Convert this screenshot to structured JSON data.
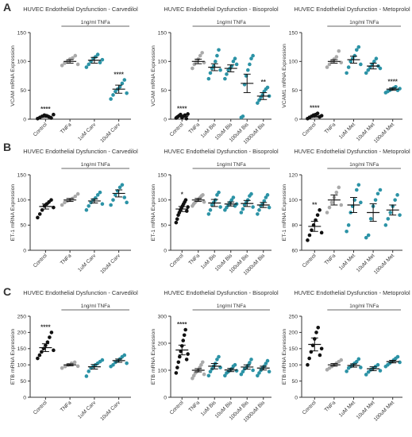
{
  "figure": {
    "row_labels": [
      "A",
      "B",
      "C"
    ],
    "colors": {
      "control": "#111111",
      "tnfa": "#aaaaaa",
      "treatment": "#2c93a6",
      "axis": "#333333"
    }
  },
  "chart_data": [
    {
      "type": "scatter",
      "title": "HUVEC Endothelial Dysfunction - Carvedilol",
      "ylabel": "VCAM mRNA Expression",
      "ylim": [
        0,
        150
      ],
      "yticks": [
        0,
        50,
        100,
        150
      ],
      "bracket_label": "1ng/ml TNFa",
      "categories": [
        "Control",
        "TNFa",
        "1uM Carv",
        "10uM Carv"
      ],
      "significance": [
        "****",
        "",
        "",
        "****"
      ],
      "means": [
        5,
        100,
        102,
        52
      ],
      "sem": [
        2,
        3,
        5,
        7
      ],
      "points": [
        [
          1,
          3,
          5,
          7,
          6,
          4,
          2,
          8
        ],
        [
          93,
          97,
          100,
          104,
          106,
          110,
          95
        ],
        [
          90,
          95,
          100,
          105,
          108,
          112,
          98,
          103
        ],
        [
          35,
          42,
          48,
          52,
          56,
          62,
          68,
          45
        ]
      ]
    },
    {
      "type": "scatter",
      "title": "HUVEC Endothelial Dysfunction - Bisoprolol",
      "ylabel": "VCAM mRNA Expression",
      "ylim": [
        0,
        150
      ],
      "yticks": [
        0,
        50,
        100,
        150
      ],
      "bracket_label": "1ng/ml TNFa",
      "categories": [
        "Control",
        "TNFa",
        "1uM Bis",
        "10uM Bis",
        "100uM Bis",
        "1000uM Bis"
      ],
      "significance": [
        "****",
        "",
        "",
        "",
        "",
        "**"
      ],
      "means": [
        5,
        100,
        90,
        88,
        62,
        40
      ],
      "sem": [
        1,
        4,
        6,
        6,
        16,
        6
      ],
      "points": [
        [
          2,
          4,
          6,
          8,
          3,
          5,
          7,
          1,
          9
        ],
        [
          88,
          95,
          100,
          104,
          110,
          115,
          98
        ],
        [
          70,
          80,
          88,
          92,
          100,
          110,
          120,
          85
        ],
        [
          70,
          78,
          85,
          88,
          92,
          100,
          105,
          95
        ],
        [
          3,
          5,
          60,
          75,
          85,
          95,
          105,
          110
        ],
        [
          28,
          33,
          38,
          42,
          48,
          52,
          55,
          40
        ]
      ]
    },
    {
      "type": "scatter",
      "title": "HUVEC Endothelial Dysfunction - Metoprolol",
      "ylabel": "VCAM1 mRNA Expression",
      "ylim": [
        0,
        150
      ],
      "yticks": [
        0,
        50,
        100,
        150
      ],
      "bracket_label": "1ng/ml TNFa",
      "categories": [
        "Control",
        "TNFa",
        "1uM Met",
        "10uM Met",
        "100uM Met"
      ],
      "significance": [
        "****",
        "",
        "",
        "",
        "****"
      ],
      "means": [
        5,
        100,
        103,
        92,
        52
      ],
      "sem": [
        2,
        3,
        6,
        5,
        2
      ],
      "points": [
        [
          1,
          3,
          5,
          7,
          8,
          10,
          4,
          6
        ],
        [
          90,
          95,
          100,
          104,
          108,
          118,
          98
        ],
        [
          80,
          90,
          100,
          105,
          110,
          120,
          125,
          95
        ],
        [
          80,
          85,
          90,
          95,
          100,
          105,
          92,
          88
        ],
        [
          46,
          48,
          50,
          52,
          54,
          56,
          50,
          53
        ]
      ]
    },
    {
      "type": "scatter",
      "title": "HUVEC Endothelial Dysfunction - Carvedilol",
      "ylabel": "ET-1 mRNA Expression",
      "ylim": [
        0,
        150
      ],
      "yticks": [
        0,
        50,
        100,
        150
      ],
      "bracket_label": "1ng/ml TNFa",
      "categories": [
        "Control",
        "TNFa",
        "1uM Carv",
        "10uM Carv"
      ],
      "significance": [
        "",
        "",
        "",
        ""
      ],
      "means": [
        87,
        100,
        98,
        113
      ],
      "sem": [
        5,
        3,
        4,
        7
      ],
      "points": [
        [
          65,
          72,
          80,
          88,
          92,
          96,
          100,
          85
        ],
        [
          90,
          95,
          98,
          100,
          103,
          107,
          112
        ],
        [
          80,
          88,
          95,
          100,
          104,
          110,
          115,
          92
        ],
        [
          90,
          100,
          110,
          118,
          125,
          130,
          105,
          95
        ]
      ]
    },
    {
      "type": "scatter",
      "title": "HUVEC Endothelial Dysfunction - Bisoprolol",
      "ylabel": "ET-1 mRNA Expression",
      "ylim": [
        0,
        150
      ],
      "yticks": [
        0,
        50,
        100,
        150
      ],
      "bracket_label": "1ng/ml TNFa",
      "categories": [
        "Control",
        "TNFa",
        "1uM Bis",
        "10uM Bis",
        "100uM Bis",
        "1000uM Bis"
      ],
      "significance": [
        "*",
        "",
        "",
        "",
        "",
        ""
      ],
      "means": [
        82,
        100,
        94,
        92,
        93,
        90
      ],
      "sem": [
        5,
        3,
        7,
        4,
        6,
        5
      ],
      "points": [
        [
          55,
          62,
          70,
          75,
          80,
          84,
          88,
          92,
          96,
          100,
          78,
          86
        ],
        [
          88,
          92,
          95,
          98,
          100,
          102,
          105,
          108,
          110,
          96
        ],
        [
          72,
          80,
          90,
          95,
          100,
          110,
          115,
          86
        ],
        [
          80,
          85,
          90,
          95,
          100,
          105,
          88,
          92
        ],
        [
          75,
          82,
          90,
          95,
          100,
          108,
          112,
          86
        ],
        [
          72,
          80,
          88,
          92,
          98,
          105,
          110,
          85
        ]
      ]
    },
    {
      "type": "scatter",
      "title": "HUVEC Endothelial Dysfunction - Metoprolol",
      "ylabel": "ET-1 mRNA Expression",
      "ylim": [
        60,
        120
      ],
      "yticks": [
        60,
        80,
        100,
        120
      ],
      "bracket_label": "1ng/ml TNFa",
      "categories": [
        "Control",
        "TNFa",
        "1uM Met",
        "10uM Met",
        "100uM Met"
      ],
      "significance": [
        "**",
        "",
        "",
        "",
        ""
      ],
      "means": [
        79,
        100,
        96,
        90,
        92
      ],
      "sem": [
        4,
        4,
        6,
        7,
        4
      ],
      "points": [
        [
          68,
          72,
          76,
          80,
          84,
          88,
          92,
          74
        ],
        [
          90,
          94,
          98,
          102,
          106,
          110,
          96
        ],
        [
          75,
          80,
          90,
          95,
          100,
          108,
          112,
          98
        ],
        [
          70,
          72,
          85,
          95,
          100,
          105,
          108
        ],
        [
          80,
          85,
          90,
          95,
          100,
          104,
          88
        ]
      ]
    },
    {
      "type": "scatter",
      "title": "HUVEC Endothelial Dysfunction - Carvedilol",
      "ylabel": "ETB mRNA Expression",
      "ylim": [
        0,
        250
      ],
      "yticks": [
        0,
        50,
        100,
        150,
        200,
        250
      ],
      "bracket_label": "1ng/ml TNFa",
      "categories": [
        "Control",
        "TNFa",
        "1uM Carv",
        "10uM Carv"
      ],
      "significance": [
        "****",
        "",
        "",
        ""
      ],
      "means": [
        153,
        100,
        94,
        113
      ],
      "sem": [
        12,
        3,
        7,
        5
      ],
      "points": [
        [
          120,
          130,
          140,
          150,
          160,
          170,
          185,
          200,
          145
        ],
        [
          90,
          95,
          100,
          105,
          108,
          96
        ],
        [
          65,
          80,
          90,
          95,
          100,
          105,
          110,
          115
        ],
        [
          95,
          100,
          108,
          112,
          118,
          125,
          130,
          105
        ]
      ]
    },
    {
      "type": "scatter",
      "title": "HUVEC Endothelial Dysfunction - Bisoprolol",
      "ylabel": "ETB mRNA Expression",
      "ylim": [
        0,
        300
      ],
      "yticks": [
        0,
        100,
        200,
        300
      ],
      "bracket_label": "1ng/ml TNFa",
      "categories": [
        "Control",
        "TNFa",
        "1uM Bis",
        "10uM Bis",
        "100uM Bis",
        "1000uM Bis"
      ],
      "significance": [
        "****",
        "",
        "",
        "",
        "",
        ""
      ],
      "means": [
        175,
        100,
        115,
        101,
        112,
        108
      ],
      "sem": [
        18,
        6,
        10,
        6,
        8,
        7
      ],
      "points": [
        [
          90,
          110,
          130,
          150,
          170,
          190,
          210,
          230,
          250,
          140,
          160
        ],
        [
          70,
          80,
          90,
          95,
          100,
          110,
          120,
          130,
          85
        ],
        [
          80,
          95,
          105,
          115,
          125,
          140,
          150,
          110
        ],
        [
          80,
          90,
          95,
          100,
          105,
          115,
          120,
          98
        ],
        [
          85,
          95,
          105,
          110,
          118,
          128,
          140,
          100
        ],
        [
          80,
          90,
          100,
          108,
          115,
          125,
          135,
          95
        ]
      ]
    },
    {
      "type": "scatter",
      "title": "HUVEC Endothelial Dysfunction - Metoprolol",
      "ylabel": "ETB mRNA Expression",
      "ylim": [
        0,
        250
      ],
      "yticks": [
        0,
        50,
        100,
        150,
        200,
        250
      ],
      "bracket_label": "1ng/ml TNFa",
      "categories": [
        "Control",
        "TNFa",
        "1uM Met",
        "10uM Met",
        "100uM Met"
      ],
      "significance": [
        "",
        "",
        "",
        "",
        ""
      ],
      "means": [
        163,
        100,
        98,
        88,
        110
      ],
      "sem": [
        20,
        4,
        5,
        6,
        4
      ],
      "points": [
        [
          100,
          120,
          140,
          160,
          180,
          200,
          215,
          130,
          150
        ],
        [
          85,
          90,
          95,
          100,
          105,
          110,
          115
        ],
        [
          80,
          90,
          95,
          100,
          105,
          110,
          118,
          92
        ],
        [
          70,
          78,
          85,
          90,
          95,
          100,
          82
        ],
        [
          95,
          100,
          105,
          110,
          115,
          120,
          125,
          108
        ]
      ]
    }
  ]
}
